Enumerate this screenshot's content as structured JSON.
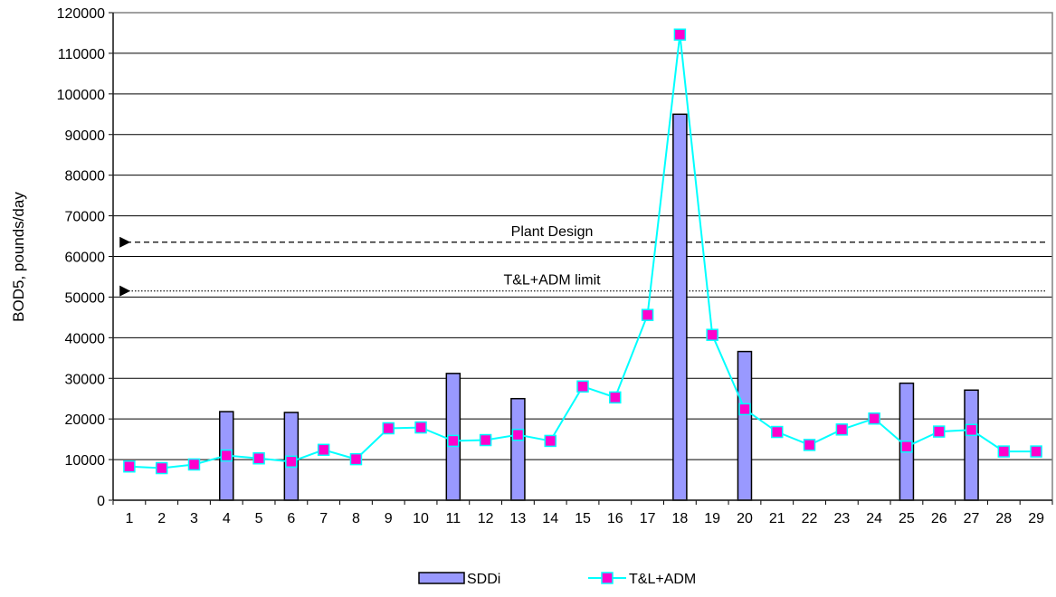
{
  "chart_data": {
    "type": "bar",
    "title": "",
    "xlabel": "",
    "ylabel": "BOD5, pounds/day",
    "ylim": [
      0,
      120000
    ],
    "yticks": [
      0,
      10000,
      20000,
      30000,
      40000,
      50000,
      60000,
      70000,
      80000,
      90000,
      100000,
      110000,
      120000
    ],
    "categories": [
      "1",
      "2",
      "3",
      "4",
      "5",
      "6",
      "7",
      "8",
      "9",
      "10",
      "11",
      "12",
      "13",
      "14",
      "15",
      "16",
      "17",
      "18",
      "19",
      "20",
      "21",
      "22",
      "23",
      "24",
      "25",
      "26",
      "27",
      "28",
      "29"
    ],
    "grid": "horizontal",
    "legend_position": "bottom",
    "series": [
      {
        "name": "SDDi",
        "type": "bar",
        "color": "#9999ff",
        "values": [
          null,
          null,
          null,
          21800,
          null,
          21600,
          null,
          null,
          null,
          null,
          31200,
          null,
          25000,
          null,
          null,
          null,
          null,
          95000,
          null,
          36600,
          null,
          null,
          null,
          null,
          28800,
          null,
          27100,
          null,
          null
        ]
      },
      {
        "name": "T&L+ADM",
        "type": "line",
        "color": "#00ffff",
        "marker_color": "#ff00cc",
        "values": [
          8300,
          7900,
          8800,
          11000,
          10300,
          9500,
          12400,
          10100,
          17700,
          17900,
          14600,
          14800,
          16100,
          14600,
          28000,
          25300,
          45600,
          114600,
          40700,
          22400,
          16800,
          13600,
          17400,
          20100,
          13200,
          16900,
          17300,
          12000,
          12000
        ]
      }
    ],
    "reference_lines": [
      {
        "label": "Plant Design",
        "value": 63500,
        "style": "dashed"
      },
      {
        "label": "T&L+ADM limit",
        "value": 51500,
        "style": "dotted"
      }
    ]
  }
}
